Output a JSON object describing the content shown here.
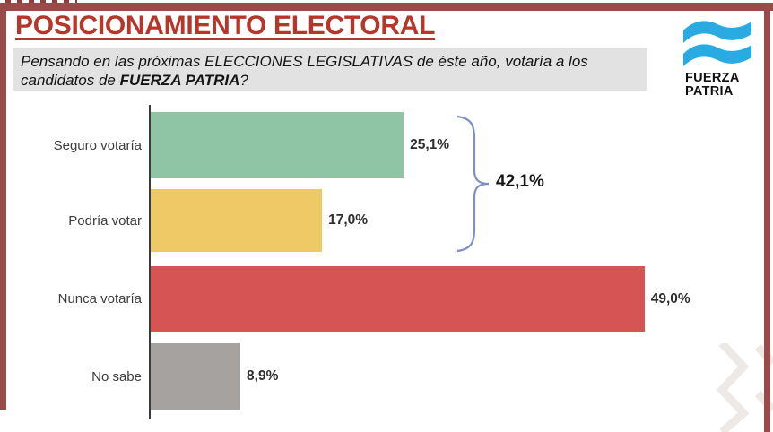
{
  "header": {
    "title": "POSICIONAMIENTO ELECTORAL"
  },
  "question": {
    "line1": "Pensando en las próximas ELECCIONES LEGISLATIVAS de éste año, votaría a los",
    "line2_prefix": "candidatos de ",
    "line2_bold": "FUERZA PATRIA",
    "line2_suffix": "?"
  },
  "logo": {
    "icon": "argentine-flag-waves-icon",
    "line1": "FUERZA",
    "line2": "PATRIA"
  },
  "chart_data": {
    "type": "bar",
    "orientation": "horizontal",
    "title": "POSICIONAMIENTO ELECTORAL",
    "categories": [
      "Seguro votaría",
      "Podría votar",
      "Nunca votaría",
      "No sabe"
    ],
    "values": [
      25.1,
      17.0,
      49.0,
      8.9
    ],
    "value_labels": [
      "25,1%",
      "17,0%",
      "49,0%",
      "8,9%"
    ],
    "bar_colors": [
      "#8FC4A4",
      "#EEC966",
      "#D75455",
      "#A5A2A0"
    ],
    "xlim": [
      0,
      52
    ],
    "grid": false,
    "legend": "none",
    "annotation": {
      "label": "42,1%",
      "meaning": "sum of 'Seguro votaría' + 'Podría votar'",
      "spans_categories": [
        "Seguro votaría",
        "Podría votar"
      ]
    }
  },
  "colors": {
    "frame_maroon": "#9B4A4A",
    "frame_maroon_dark": "#8F3E3E",
    "title_red": "#B5372A",
    "flag_blue": "#29ABE2",
    "brace_blue": "#7D90C2",
    "question_box_bg": "#E2E2E2",
    "chevron_gray": "#ECE9E6"
  }
}
